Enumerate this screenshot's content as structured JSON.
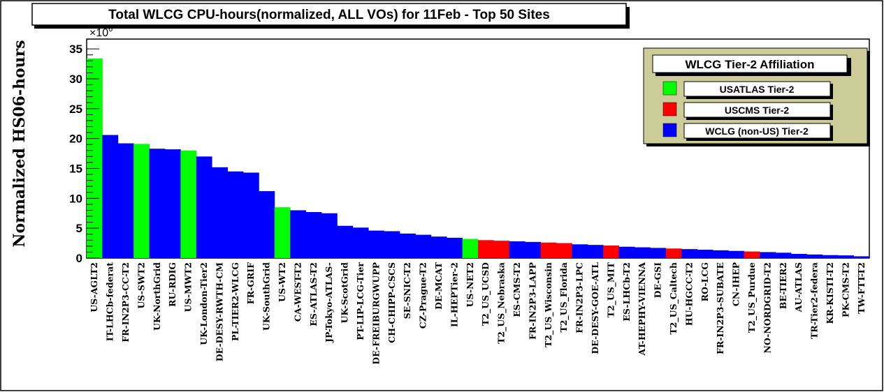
{
  "chart_data": {
    "type": "bar",
    "title": "Total WLCG CPU-hours(normalized, ALL VOs) for 11Feb - Top 50 Sites",
    "ylabel": "Normalized HS06-hours",
    "xlabel": "",
    "y_multiplier_base": "×10",
    "y_multiplier_exp": "6",
    "ylim": [
      0,
      35
    ],
    "yticks": [
      0,
      5,
      10,
      15,
      20,
      25,
      30,
      35
    ],
    "categories": [
      "US-AGLT2",
      "IT-LHCb-federat",
      "FR-IN2P3-CC-T2",
      "US-SWT2",
      "UK-NorthGrid",
      "RU-RDIG",
      "US-MWT2",
      "UK-London-Tier2",
      "DE-DESY-RWTH-CM",
      "PL-TIER2-WLCG",
      "FR-GRIF",
      "UK-SouthGrid",
      "US-WT2",
      "CA-WEST-T2",
      "ES-ATLAS-T2",
      "JP-Tokyo-ATLAS-",
      "UK-ScotGrid",
      "PT-LIP-LCG-Tier",
      "DE-FREIBURGWUPP",
      "CH-CHIPP-CSCS",
      "SE-SNIC-T2",
      "CZ-Prague-T2",
      "DE-MCAT",
      "IL-HEPTier-2",
      "US-NET2",
      "T2_US_UCSD",
      "T2_US_Nebraska",
      "ES-CMS-T2",
      "FR-IN2P3-LAPP",
      "T2_US_Wisconsin",
      "T2_US_Florida",
      "FR-IN2P3-LPC",
      "DE-DESY-GOE-ATL",
      "T2_US_MIT",
      "ES-LHCb-T2",
      "AT-HEPHY-VIENNA",
      "DE-GSI",
      "T2_US_Caltech",
      "HU-HGCC-T2",
      "RO-LCG",
      "FR-IN2P3-SUBATE",
      "CN-IHEP",
      "T2_US_Purdue",
      "NO-NORDGRID-T2",
      "BE-TIER2",
      "AU-ATLAS",
      "TR-Tier2-federa",
      "KR-KISTI-T2",
      "PK-CMS-T2",
      "TW-FTT-T2"
    ],
    "values": [
      33.4,
      20.6,
      19.2,
      19.1,
      18.3,
      18.2,
      18.0,
      17.0,
      15.2,
      14.5,
      14.3,
      11.2,
      8.5,
      8.0,
      7.7,
      7.5,
      5.4,
      5.1,
      4.6,
      4.5,
      4.1,
      3.9,
      3.6,
      3.4,
      3.2,
      3.0,
      2.9,
      2.8,
      2.7,
      2.6,
      2.5,
      2.3,
      2.2,
      2.1,
      1.9,
      1.8,
      1.7,
      1.6,
      1.5,
      1.4,
      1.3,
      1.2,
      1.1,
      1.0,
      0.9,
      0.7,
      0.6,
      0.5,
      0.45,
      0.3
    ],
    "affiliation": [
      "USATLAS",
      "WCLG",
      "WCLG",
      "USATLAS",
      "WCLG",
      "WCLG",
      "USATLAS",
      "WCLG",
      "WCLG",
      "WCLG",
      "WCLG",
      "WCLG",
      "USATLAS",
      "WCLG",
      "WCLG",
      "WCLG",
      "WCLG",
      "WCLG",
      "WCLG",
      "WCLG",
      "WCLG",
      "WCLG",
      "WCLG",
      "WCLG",
      "USATLAS",
      "USCMS",
      "USCMS",
      "WCLG",
      "WCLG",
      "USCMS",
      "USCMS",
      "WCLG",
      "WCLG",
      "USCMS",
      "WCLG",
      "WCLG",
      "WCLG",
      "USCMS",
      "WCLG",
      "WCLG",
      "WCLG",
      "WCLG",
      "USCMS",
      "WCLG",
      "WCLG",
      "WCLG",
      "WCLG",
      "WCLG",
      "WCLG",
      "WCLG"
    ],
    "legend": {
      "title": "WLCG Tier-2 Affiliation",
      "placement": "top-right",
      "entries": [
        {
          "key": "USATLAS",
          "label": "USATLAS Tier-2",
          "color": "#00ff00"
        },
        {
          "key": "USCMS",
          "label": "USCMS Tier-2",
          "color": "#ff0000"
        },
        {
          "key": "WCLG",
          "label": "WCLG (non-US) Tier-2",
          "color": "#0000ff"
        }
      ]
    },
    "grid": false
  },
  "colors": {
    "legend_background": "#cccc99",
    "frame": "#000000"
  }
}
